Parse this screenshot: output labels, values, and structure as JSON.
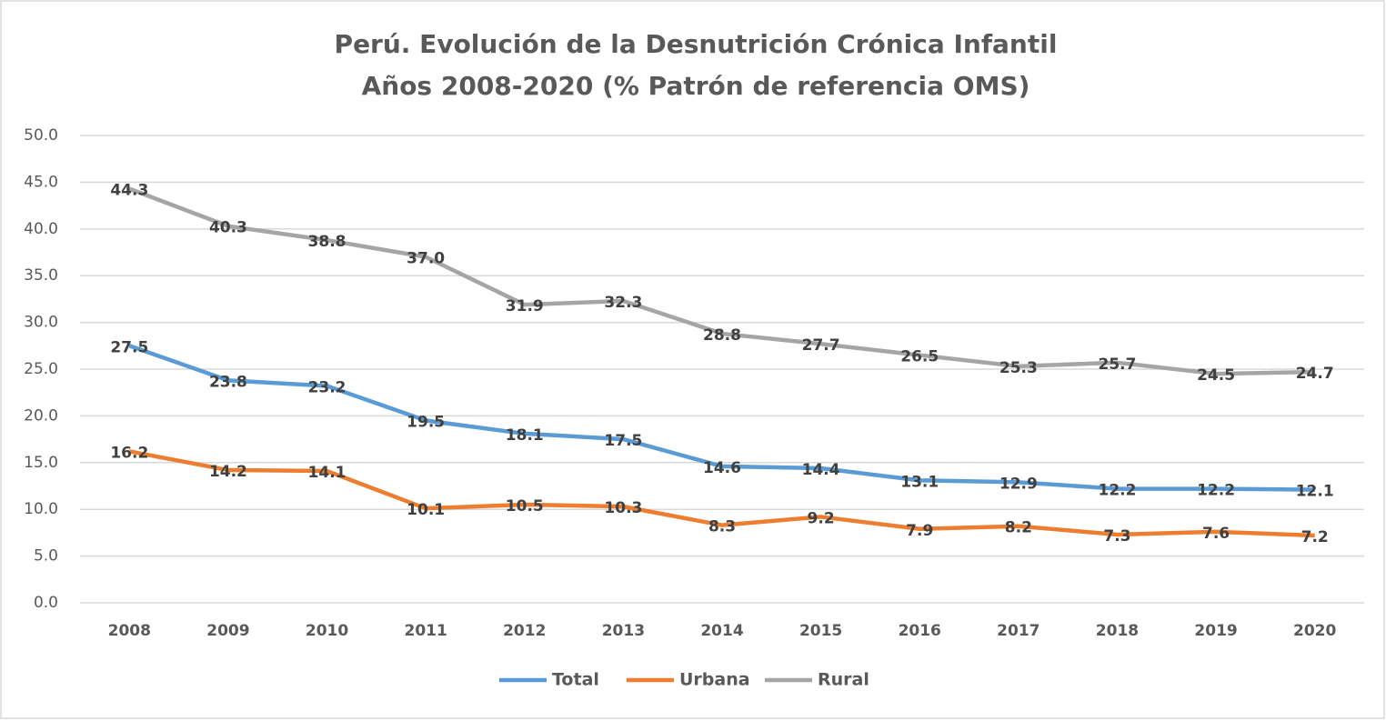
{
  "chart_data": {
    "type": "line",
    "title": [
      "Perú. Evolución de la Desnutrición Crónica Infantil",
      "Años 2008-2020 (% Patrón de referencia OMS)"
    ],
    "categories": [
      "2008",
      "2009",
      "2010",
      "2011",
      "2012",
      "2013",
      "2014",
      "2015",
      "2016",
      "2017",
      "2018",
      "2019",
      "2020"
    ],
    "series": [
      {
        "name": "Total",
        "color": "#5b9bd5",
        "values": [
          27.5,
          23.8,
          23.2,
          19.5,
          18.1,
          17.5,
          14.6,
          14.4,
          13.1,
          12.9,
          12.2,
          12.2,
          12.1
        ]
      },
      {
        "name": "Urbana",
        "color": "#ed7d31",
        "values": [
          16.2,
          14.2,
          14.1,
          10.1,
          10.5,
          10.3,
          8.3,
          9.2,
          7.9,
          8.2,
          7.3,
          7.6,
          7.2
        ]
      },
      {
        "name": "Rural",
        "color": "#a5a5a5",
        "values": [
          44.3,
          40.3,
          38.8,
          37.0,
          31.9,
          32.3,
          28.8,
          27.7,
          26.5,
          25.3,
          25.7,
          24.5,
          24.7
        ],
        "value_labels": [
          "44.3",
          "40.3",
          "38.8",
          "37.0",
          "31.9",
          "32.3",
          "28.8",
          "27.7",
          "26.5",
          "25.3",
          "25.7",
          "24.5",
          "24.7"
        ]
      }
    ],
    "ylim": [
      0,
      50
    ],
    "yticks": [
      {
        "value": 0,
        "label": "0.0"
      },
      {
        "value": 5,
        "label": "5.0"
      },
      {
        "value": 10,
        "label": "10.0"
      },
      {
        "value": 15,
        "label": "15.0"
      },
      {
        "value": 20,
        "label": "20.0"
      },
      {
        "value": 25,
        "label": "25.0"
      },
      {
        "value": 30,
        "label": "30.0"
      },
      {
        "value": 35,
        "label": "35.0"
      },
      {
        "value": 40,
        "label": "40.0"
      },
      {
        "value": 45,
        "label": "45.0"
      },
      {
        "value": 50,
        "label": "50.0"
      }
    ],
    "grid": true,
    "legend": "bottom"
  }
}
